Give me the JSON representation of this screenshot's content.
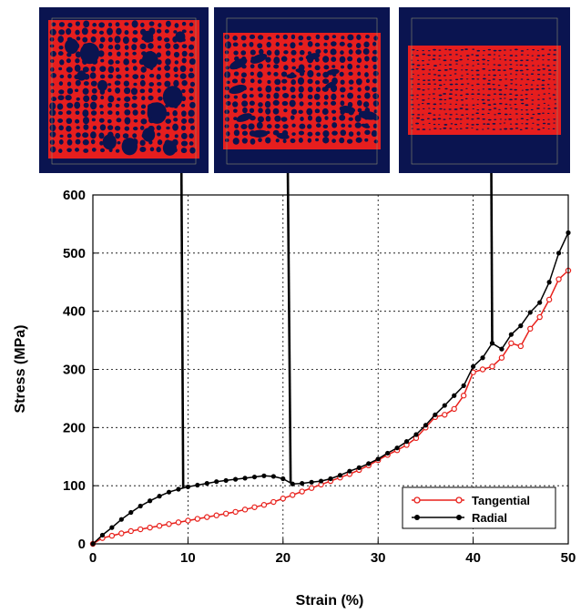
{
  "chart_data": {
    "type": "line",
    "xlabel": "Strain (%)",
    "ylabel": "Stress (MPa)",
    "xlim": [
      0,
      50
    ],
    "ylim": [
      0,
      600
    ],
    "xticks": [
      0,
      10,
      20,
      30,
      40,
      50
    ],
    "yticks": [
      0,
      100,
      200,
      300,
      400,
      500,
      600
    ],
    "grid": "dotted",
    "legend": "bottom-right",
    "series": [
      {
        "name": "Tangential",
        "color": "#e8201b",
        "marker": "open-circle",
        "x": [
          0,
          1,
          2,
          3,
          4,
          5,
          6,
          7,
          8,
          9,
          10,
          11,
          12,
          13,
          14,
          15,
          16,
          17,
          18,
          19,
          20,
          21,
          22,
          23,
          24,
          25,
          26,
          27,
          28,
          29,
          30,
          31,
          32,
          33,
          34,
          35,
          36,
          37,
          38,
          39,
          40,
          41,
          42,
          43,
          44,
          45,
          46,
          47,
          48,
          49,
          50
        ],
        "values": [
          0,
          10,
          14,
          18,
          22,
          25,
          28,
          31,
          34,
          37,
          40,
          43,
          46,
          49,
          52,
          55,
          59,
          63,
          67,
          72,
          78,
          84,
          90,
          96,
          102,
          108,
          114,
          120,
          127,
          135,
          144,
          153,
          161,
          170,
          182,
          200,
          218,
          222,
          232,
          255,
          295,
          300,
          305,
          320,
          345,
          340,
          370,
          390,
          420,
          455,
          470
        ]
      },
      {
        "name": "Radial",
        "color": "#000000",
        "marker": "filled-circle",
        "x": [
          0,
          1,
          2,
          3,
          4,
          5,
          6,
          7,
          8,
          9,
          10,
          11,
          12,
          13,
          14,
          15,
          16,
          17,
          18,
          19,
          20,
          21,
          22,
          23,
          24,
          25,
          26,
          27,
          28,
          29,
          30,
          31,
          32,
          33,
          34,
          35,
          36,
          37,
          38,
          39,
          40,
          41,
          42,
          43,
          44,
          45,
          46,
          47,
          48,
          49,
          50
        ],
        "values": [
          0,
          15,
          28,
          42,
          54,
          65,
          74,
          82,
          89,
          94,
          98,
          101,
          104,
          107,
          109,
          111,
          113,
          115,
          117,
          116,
          112,
          103,
          104,
          106,
          108,
          112,
          118,
          125,
          131,
          138,
          146,
          156,
          165,
          176,
          188,
          204,
          222,
          238,
          255,
          272,
          305,
          320,
          345,
          335,
          360,
          375,
          398,
          415,
          450,
          500,
          535
        ]
      }
    ]
  }
}
